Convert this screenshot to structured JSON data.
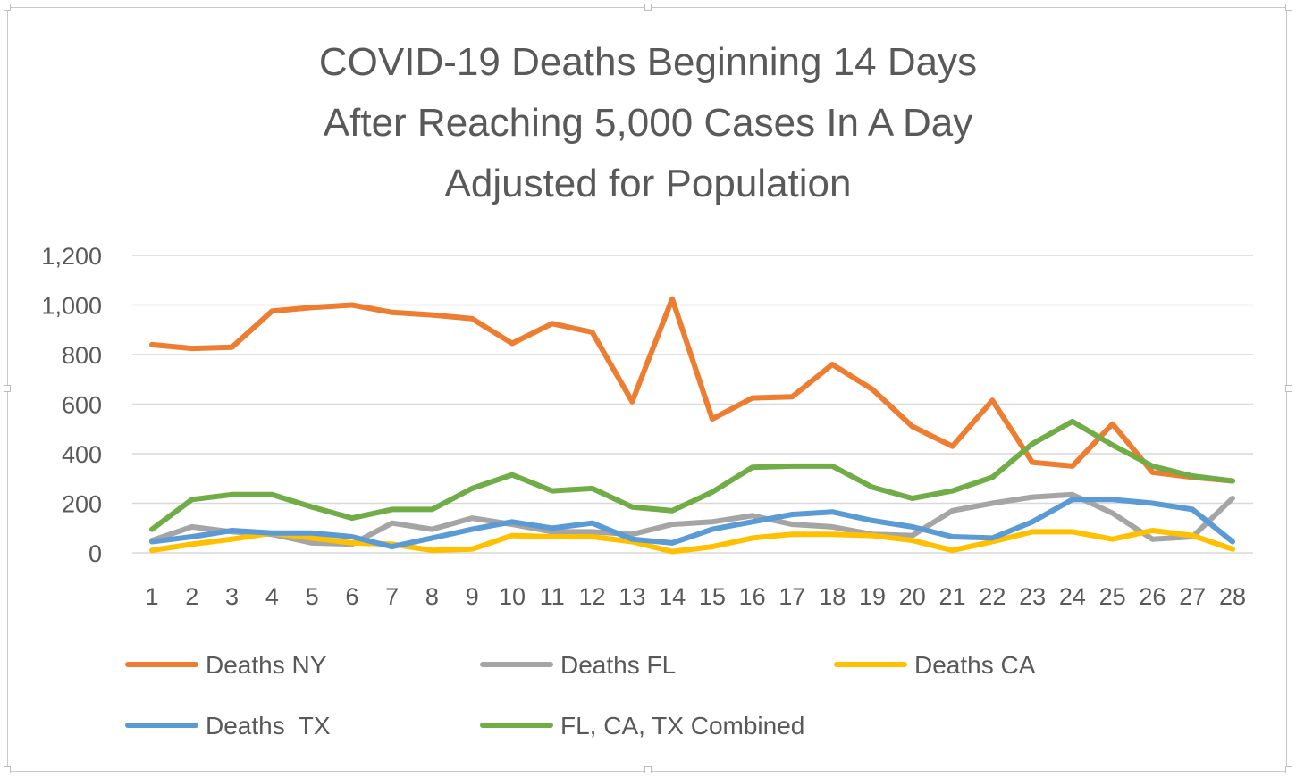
{
  "chart_data": {
    "type": "line",
    "title_lines": [
      "COVID-19 Deaths Beginning 14 Days",
      "After Reaching 5,000 Cases In A Day",
      "Adjusted for Population"
    ],
    "xlabel": "",
    "ylabel": "",
    "x": [
      1,
      2,
      3,
      4,
      5,
      6,
      7,
      8,
      9,
      10,
      11,
      12,
      13,
      14,
      15,
      16,
      17,
      18,
      19,
      20,
      21,
      22,
      23,
      24,
      25,
      26,
      27,
      28
    ],
    "ylim": [
      0,
      1200
    ],
    "yticks": [
      0,
      200,
      400,
      600,
      800,
      1000,
      1200
    ],
    "ytick_labels": [
      "0",
      "200",
      "400",
      "600",
      "800",
      "1,000",
      "1,200"
    ],
    "grid": true,
    "legend_position": "bottom",
    "series": [
      {
        "name": "Deaths NY",
        "color": "#ED7D31",
        "values": [
          840,
          825,
          830,
          975,
          990,
          1000,
          970,
          960,
          945,
          845,
          925,
          890,
          610,
          1025,
          540,
          625,
          630,
          760,
          660,
          510,
          430,
          615,
          365,
          350,
          520,
          325,
          305,
          290
        ]
      },
      {
        "name": "Deaths FL",
        "color": "#A5A5A5",
        "values": [
          50,
          105,
          85,
          75,
          40,
          35,
          120,
          95,
          140,
          115,
          85,
          85,
          75,
          115,
          125,
          150,
          115,
          105,
          75,
          70,
          170,
          200,
          225,
          235,
          160,
          55,
          65,
          220
        ]
      },
      {
        "name": "Deaths CA",
        "color": "#FFC000",
        "values": [
          10,
          35,
          55,
          80,
          60,
          40,
          35,
          10,
          15,
          70,
          65,
          65,
          45,
          5,
          25,
          60,
          75,
          75,
          70,
          50,
          10,
          45,
          85,
          85,
          55,
          90,
          70,
          15
        ]
      },
      {
        "name": "Deaths  TX",
        "color": "#5B9BD5",
        "values": [
          45,
          65,
          90,
          80,
          80,
          65,
          25,
          60,
          95,
          125,
          100,
          120,
          55,
          40,
          95,
          125,
          155,
          165,
          130,
          105,
          65,
          60,
          125,
          215,
          215,
          200,
          175,
          45
        ]
      },
      {
        "name": "FL, CA, TX Combined",
        "color": "#70AD47",
        "values": [
          95,
          215,
          235,
          235,
          185,
          140,
          175,
          175,
          260,
          315,
          250,
          260,
          185,
          170,
          245,
          345,
          350,
          350,
          265,
          220,
          250,
          305,
          440,
          530,
          435,
          350,
          310,
          290
        ]
      }
    ]
  }
}
